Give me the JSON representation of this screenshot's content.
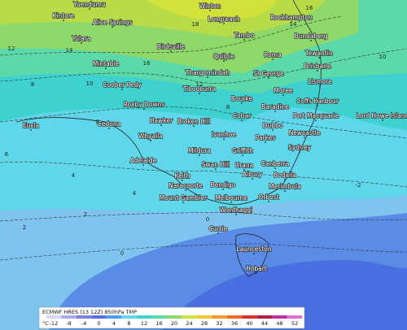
{
  "places": [
    "Yuendumu",
    "Winton",
    "Kintore",
    "Alice Springs",
    "Longreach",
    "Rockhampton",
    "Yulara",
    "Tambo",
    "Bundaberg",
    "Birdsville",
    "Mintabie",
    "Quilpie",
    "Roma",
    "Tewantin",
    "Brisbane",
    "Coober Pedy",
    "Thargomindah",
    "St George",
    "Lismore",
    "Moree",
    "Tibooburra",
    "Roxby Downs",
    "Bourke",
    "Coffs Harbour",
    "Baradine",
    "Hawker",
    "Broken Hill",
    "Cobar",
    "Port Macquarie",
    "Lord Howe Island",
    "Ceduna",
    "Eucla",
    "Dubbo",
    "Whyalla",
    "Ivanhoe",
    "Parkes",
    "Newcastle",
    "Mildura",
    "Griffith",
    "Sydney",
    "Adelaide",
    "Swan Hill",
    "Urana",
    "Canberra",
    "Keith",
    "Albury",
    "Bodalla",
    "Naracoorte",
    "Bendigo",
    "Merimbula",
    "Mount Gambier",
    "Melbourne",
    "Orbost",
    "Wonthaggi",
    "Currie",
    "Launceston",
    "Hobart"
  ],
  "contour_labels": [
    18,
    16,
    14,
    12,
    10,
    8,
    6,
    4,
    2,
    0,
    -2,
    16,
    14,
    12,
    10,
    8,
    6,
    4,
    2,
    0
  ],
  "legend": {
    "title": "ECMWF HRES (13 12Z) 850hPa TMP",
    "unit": "°C",
    "ticks": [
      -12,
      -8,
      -4,
      0,
      4,
      8,
      12,
      16,
      20,
      24,
      28,
      32,
      36,
      40,
      44,
      48,
      52
    ]
  }
}
